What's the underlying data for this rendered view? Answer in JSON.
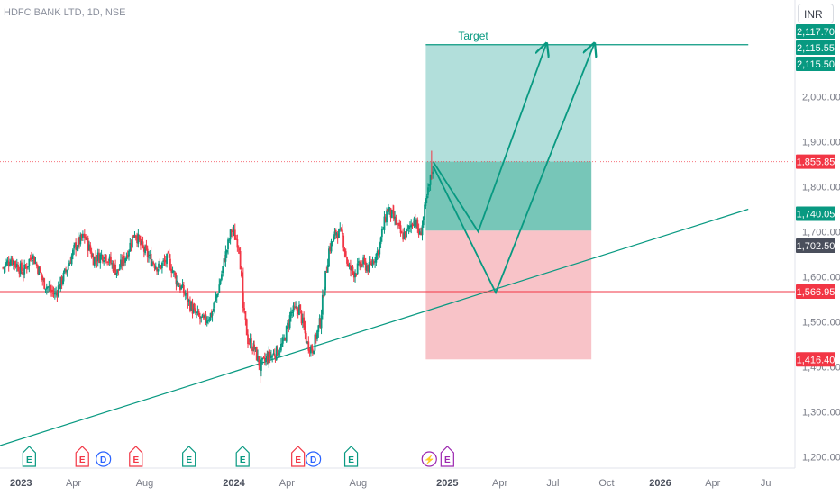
{
  "header": {
    "symbol_title": "HDFC BANK LTD, 1D, NSE",
    "currency_button": "INR"
  },
  "colors": {
    "up": "#089981",
    "down": "#f23645",
    "profit_fill": "#b2dfdb",
    "loss_fill": "#f8c3c8",
    "trend_line": "#089981",
    "support_line": "#f23645",
    "axis_text": "#787b86",
    "label_green": "#089981",
    "label_red": "#f23645",
    "label_gray": "#4a4f5c"
  },
  "chart_data": {
    "type": "candlestick",
    "title": "HDFC BANK LTD, 1D, NSE",
    "x_axis": {
      "tick_labels": [
        "2023",
        "Apr",
        "Aug",
        "2024",
        "Apr",
        "Aug",
        "2025",
        "Apr",
        "Jul",
        "Oct",
        "2026",
        "Apr",
        "Ju"
      ],
      "tick_dates": [
        "2023-01-01",
        "2023-04-01",
        "2023-08-01",
        "2024-01-01",
        "2024-04-01",
        "2024-08-01",
        "2025-01-01",
        "2025-04-01",
        "2025-07-01",
        "2025-10-01",
        "2026-01-01",
        "2026-04-01",
        "2026-07-01"
      ],
      "range": [
        "2022-11-26",
        "2026-08-20"
      ]
    },
    "y_axis": {
      "tick_labels": [
        "1,200.00",
        "1,300.00",
        "1,400.00",
        "1,500.00",
        "1,600.00",
        "1,700.00",
        "1,800.00",
        "1,900.00",
        "2,000.00"
      ],
      "ticks": [
        1200,
        1300,
        1400,
        1500,
        1600,
        1700,
        1800,
        1900,
        2000
      ],
      "range": [
        1175,
        2215
      ],
      "currency": "INR"
    },
    "price_path": [
      [
        "2022-12-01",
        1620
      ],
      [
        "2022-12-15",
        1640
      ],
      [
        "2023-01-05",
        1610
      ],
      [
        "2023-01-20",
        1650
      ],
      [
        "2023-02-10",
        1585
      ],
      [
        "2023-02-28",
        1560
      ],
      [
        "2023-03-15",
        1600
      ],
      [
        "2023-04-05",
        1670
      ],
      [
        "2023-04-20",
        1690
      ],
      [
        "2023-05-05",
        1640
      ],
      [
        "2023-05-25",
        1650
      ],
      [
        "2023-06-15",
        1610
      ],
      [
        "2023-07-01",
        1650
      ],
      [
        "2023-07-15",
        1700
      ],
      [
        "2023-07-25",
        1670
      ],
      [
        "2023-08-10",
        1640
      ],
      [
        "2023-08-25",
        1620
      ],
      [
        "2023-09-10",
        1640
      ],
      [
        "2023-09-25",
        1590
      ],
      [
        "2023-10-10",
        1560
      ],
      [
        "2023-10-25",
        1520
      ],
      [
        "2023-11-10",
        1500
      ],
      [
        "2023-11-25",
        1520
      ],
      [
        "2023-12-05",
        1570
      ],
      [
        "2023-12-18",
        1650
      ],
      [
        "2023-12-28",
        1705
      ],
      [
        "2024-01-10",
        1670
      ],
      [
        "2024-01-17",
        1530
      ],
      [
        "2024-01-25",
        1460
      ],
      [
        "2024-02-05",
        1440
      ],
      [
        "2024-02-15",
        1400
      ],
      [
        "2024-02-28",
        1420
      ],
      [
        "2024-03-12",
        1430
      ],
      [
        "2024-03-25",
        1450
      ],
      [
        "2024-04-08",
        1520
      ],
      [
        "2024-04-22",
        1530
      ],
      [
        "2024-05-06",
        1450
      ],
      [
        "2024-05-15",
        1440
      ],
      [
        "2024-05-28",
        1500
      ],
      [
        "2024-06-04",
        1580
      ],
      [
        "2024-06-12",
        1660
      ],
      [
        "2024-06-25",
        1700
      ],
      [
        "2024-07-05",
        1690
      ],
      [
        "2024-07-15",
        1620
      ],
      [
        "2024-07-25",
        1610
      ],
      [
        "2024-08-08",
        1630
      ],
      [
        "2024-08-20",
        1620
      ],
      [
        "2024-09-05",
        1660
      ],
      [
        "2024-09-20",
        1750
      ],
      [
        "2024-10-01",
        1730
      ],
      [
        "2024-10-15",
        1690
      ],
      [
        "2024-10-25",
        1700
      ],
      [
        "2024-11-05",
        1730
      ],
      [
        "2024-11-15",
        1690
      ],
      [
        "2024-11-25",
        1760
      ],
      [
        "2024-12-05",
        1830
      ],
      [
        "2024-12-09",
        1855.85
      ]
    ],
    "price_extremes": {
      "high": 1880,
      "low": 1363
    },
    "series": [
      {
        "name": "",
        "type": "trend_line",
        "points": [
          [
            "2022-11-26",
            1225
          ],
          [
            "2026-06-01",
            1750
          ]
        ]
      },
      {
        "name": "",
        "type": "horizontal_line",
        "value": 1566.95
      },
      {
        "name": "",
        "type": "horizontal_dotted_line",
        "value": 1855.85
      }
    ],
    "position": {
      "type": "long",
      "entry": 1702.5,
      "target": 2115.5,
      "stop": 1416.4,
      "start": "2024-11-25",
      "end": "2025-09-05",
      "target_label": "Target"
    },
    "projections": [
      [
        [
          "2024-12-08",
          1855
        ],
        [
          "2025-02-23",
          1700
        ],
        [
          "2025-06-20",
          2118
        ]
      ],
      [
        [
          "2024-12-08",
          1845
        ],
        [
          "2025-03-25",
          1565
        ],
        [
          "2025-09-10",
          2118
        ]
      ]
    ],
    "price_labels": [
      {
        "text": "2,117.70",
        "value": 2117.7,
        "style": "green"
      },
      {
        "text": "2,115.55",
        "value": 2115.55,
        "style": "green"
      },
      {
        "text": "2,115.50",
        "value": 2115.5,
        "style": "green"
      },
      {
        "text": "1,855.85",
        "value": 1855.85,
        "style": "red"
      },
      {
        "text": "1,740.05",
        "value": 1740.05,
        "style": "green"
      },
      {
        "text": "1,702.50",
        "value": 1702.5,
        "style": "gray"
      },
      {
        "text": "1,566.95",
        "value": 1566.95,
        "style": "red"
      },
      {
        "text": "1,416.40",
        "value": 1416.4,
        "style": "red"
      }
    ],
    "events": [
      {
        "type": "earnings",
        "letter": "E",
        "date": "2023-01-15",
        "color": "green"
      },
      {
        "type": "earnings",
        "letter": "E",
        "date": "2023-04-16",
        "color": "red"
      },
      {
        "type": "dividend",
        "letter": "D",
        "date": "2023-05-16",
        "color": "blue"
      },
      {
        "type": "earnings",
        "letter": "E",
        "date": "2023-07-17",
        "color": "red"
      },
      {
        "type": "earnings",
        "letter": "E",
        "date": "2023-10-16",
        "color": "green"
      },
      {
        "type": "earnings",
        "letter": "E",
        "date": "2024-01-16",
        "color": "green"
      },
      {
        "type": "earnings",
        "letter": "E",
        "date": "2024-04-20",
        "color": "red"
      },
      {
        "type": "dividend",
        "letter": "D",
        "date": "2024-05-10",
        "color": "blue"
      },
      {
        "type": "earnings",
        "letter": "E",
        "date": "2024-07-20",
        "color": "green"
      },
      {
        "type": "split",
        "letter": "⚡",
        "date": "2024-12-01",
        "color": "purple"
      },
      {
        "type": "earnings",
        "letter": "E",
        "date": "2025-01-01",
        "color": "purple"
      }
    ],
    "grid": false,
    "legend": "none"
  }
}
